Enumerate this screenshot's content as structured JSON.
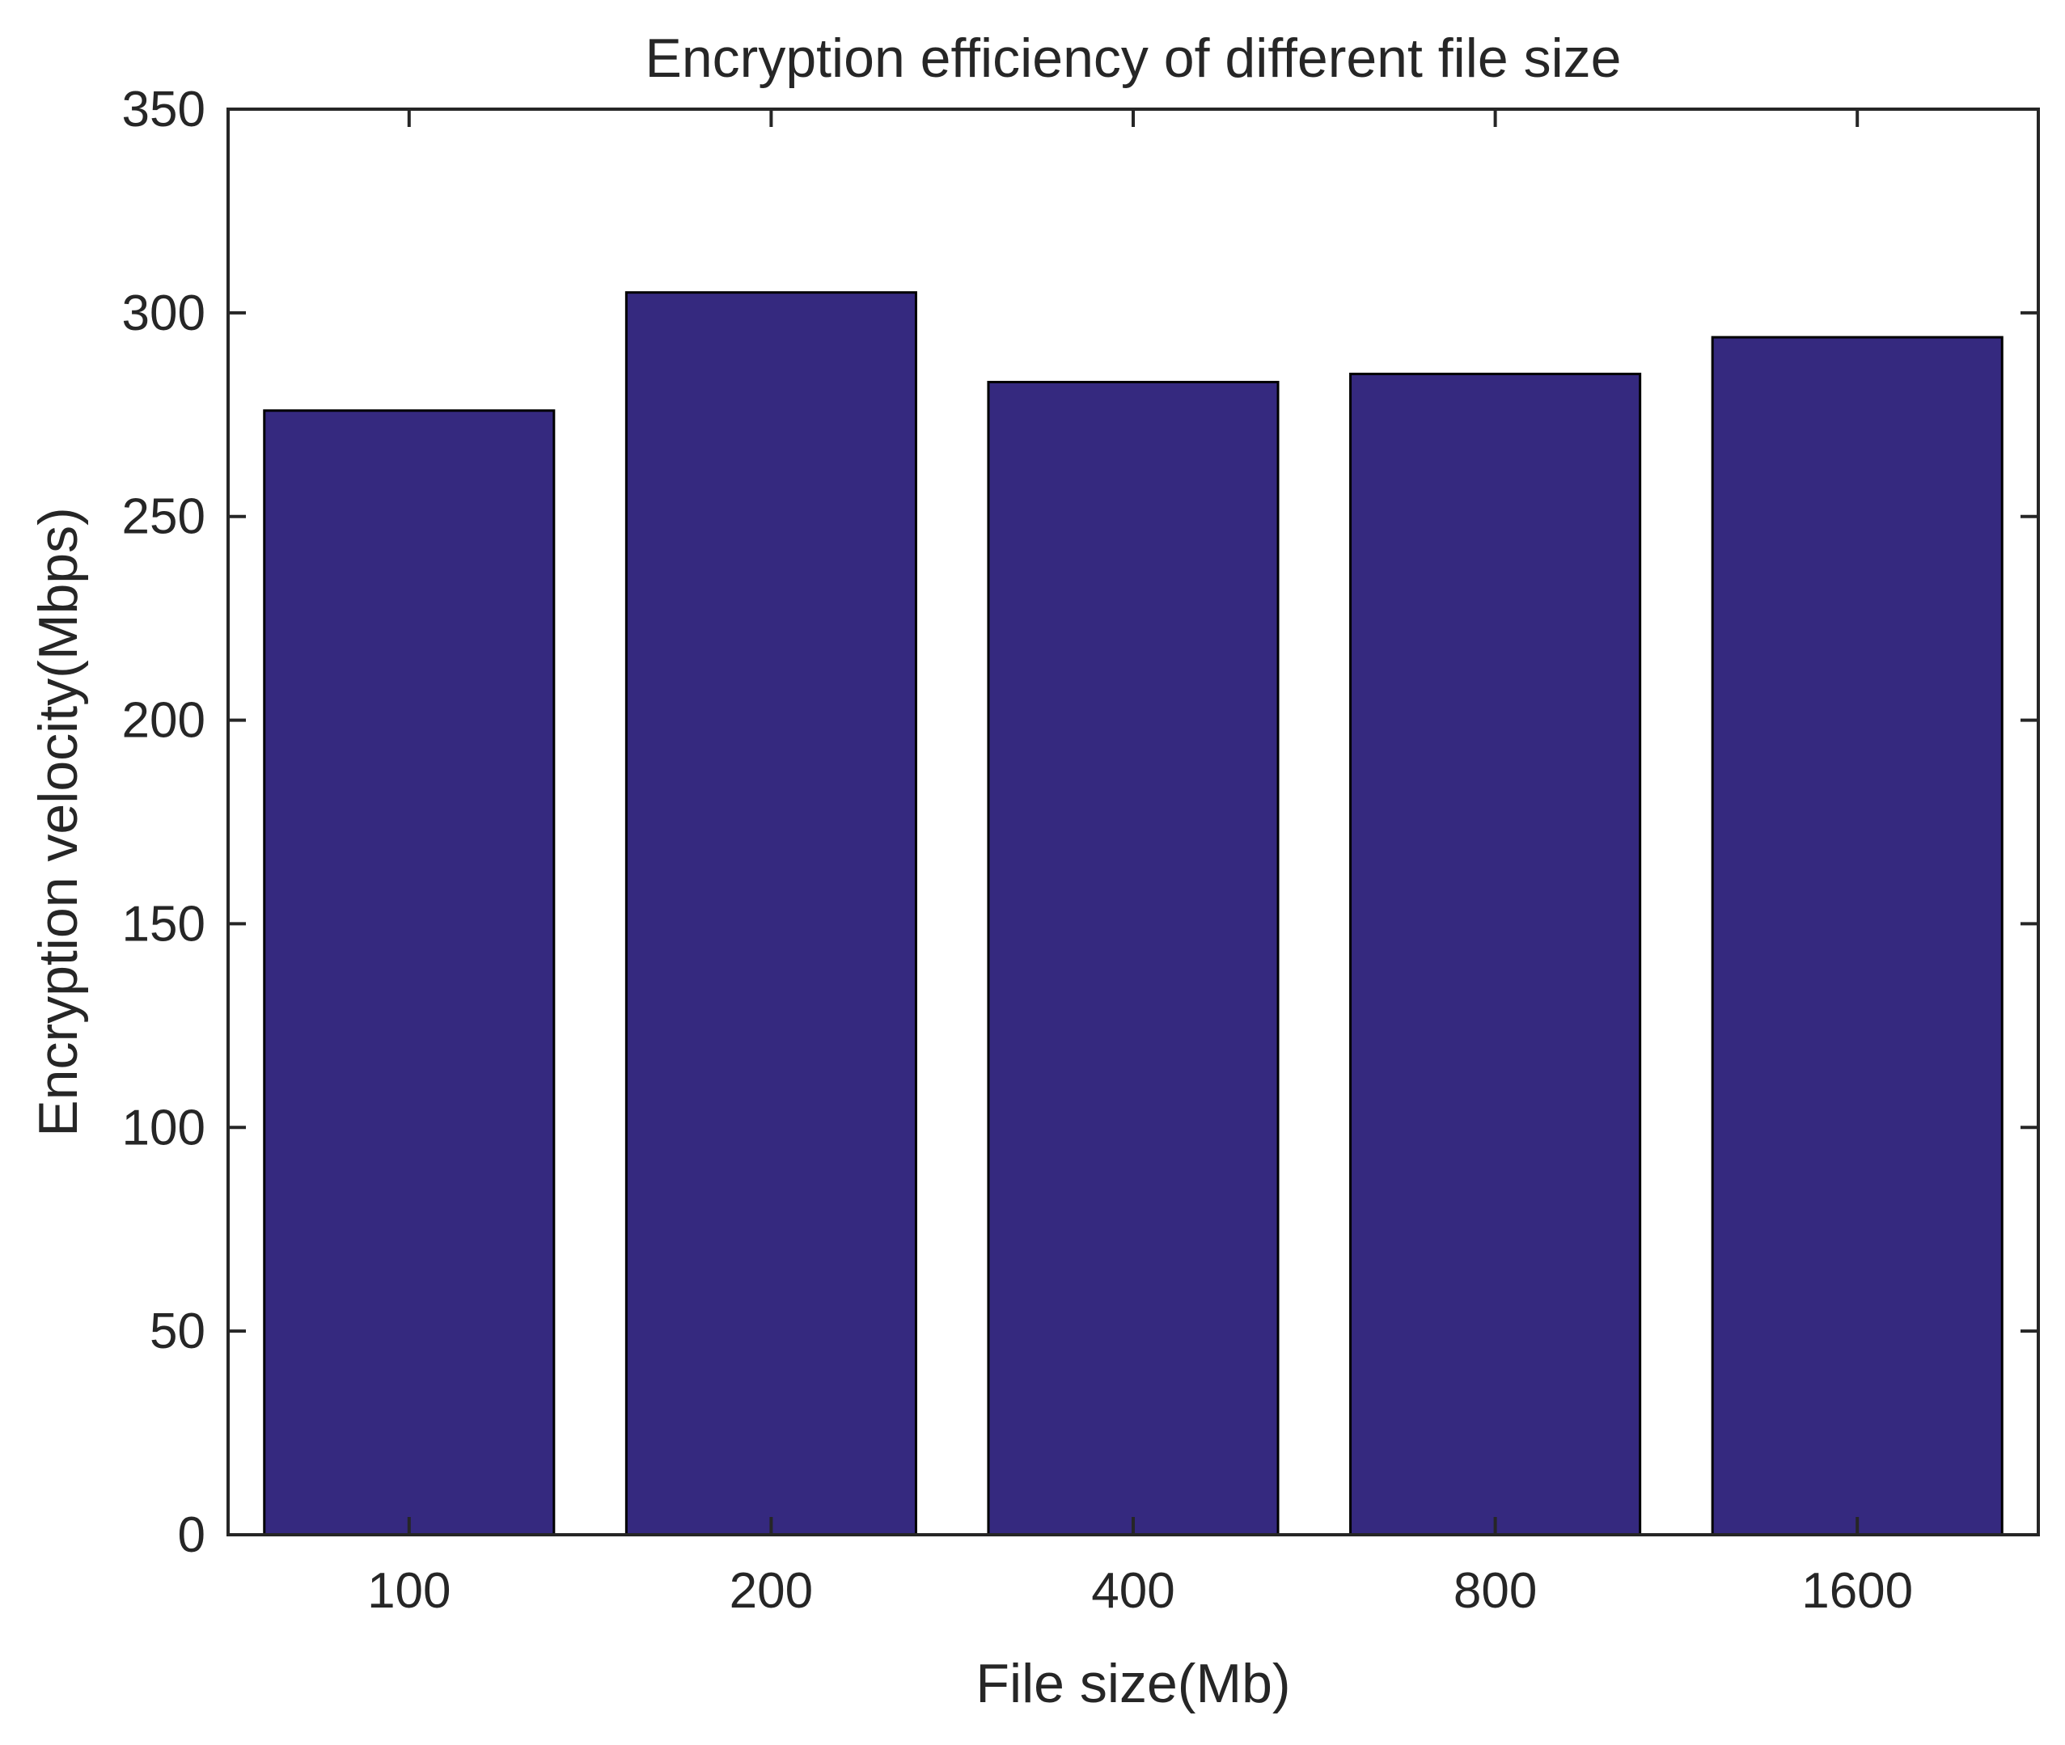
{
  "chart_data": {
    "type": "bar",
    "title": "Encryption efficiency of different file size",
    "xlabel": "File size(Mb)",
    "ylabel": "Encryption velocity(Mbps)",
    "categories": [
      "100",
      "200",
      "400",
      "800",
      "1600"
    ],
    "values": [
      276,
      305,
      283,
      285,
      294
    ],
    "ylim": [
      0,
      350
    ],
    "yticks": [
      "0",
      "50",
      "100",
      "150",
      "200",
      "250",
      "300",
      "350"
    ],
    "grid": false,
    "legend": "none",
    "bar_color": "#35297f",
    "bar_edge_color": "#000000",
    "axis_color": "#262626"
  }
}
